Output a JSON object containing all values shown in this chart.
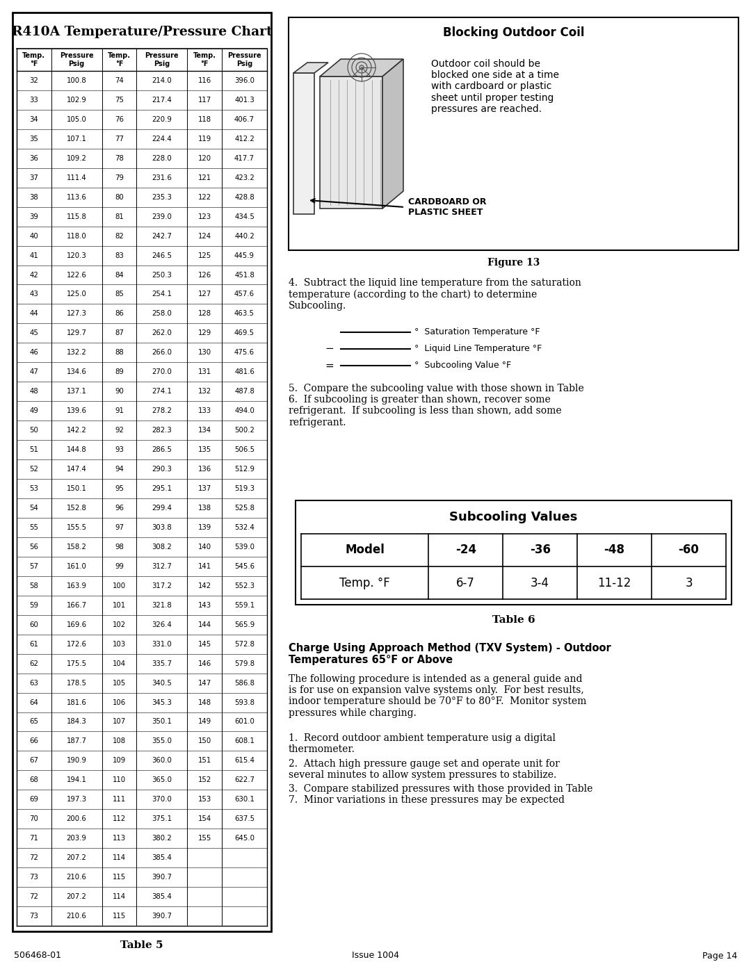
{
  "title_left": "R410A Temperature/Pressure Chart",
  "title_right": "Blocking Outdoor Coil",
  "figure13_caption": "Figure 13",
  "table5_caption": "Table 5",
  "table6_caption": "Table 6",
  "page_footer_left": "506468-01",
  "page_footer_center": "Issue 1004",
  "page_footer_right": "Page 14",
  "col1_temp": [
    32,
    33,
    34,
    35,
    36,
    37,
    38,
    39,
    40,
    41,
    42,
    43,
    44,
    45,
    46,
    47,
    48,
    49,
    50,
    51,
    52,
    53,
    54,
    55,
    56,
    57,
    58,
    59,
    60,
    61,
    62,
    63,
    64,
    65,
    66,
    67,
    68,
    69,
    70,
    71,
    72,
    73
  ],
  "col1_pres": [
    100.8,
    102.9,
    105.0,
    107.1,
    109.2,
    111.4,
    113.6,
    115.8,
    118.0,
    120.3,
    122.6,
    125.0,
    127.3,
    129.7,
    132.2,
    134.6,
    137.1,
    139.6,
    142.2,
    144.8,
    147.4,
    150.1,
    152.8,
    155.5,
    158.2,
    161.0,
    163.9,
    166.7,
    169.6,
    172.6,
    175.5,
    178.5,
    181.6,
    184.3,
    187.7,
    190.9,
    194.1,
    197.3,
    200.6,
    203.9,
    207.2,
    210.6
  ],
  "col2_temp": [
    74,
    75,
    76,
    77,
    78,
    79,
    80,
    81,
    82,
    83,
    84,
    85,
    86,
    87,
    88,
    89,
    90,
    91,
    92,
    93,
    94,
    95,
    96,
    97,
    98,
    99,
    100,
    101,
    102,
    103,
    104,
    105,
    106,
    107,
    108,
    109,
    110,
    111,
    112,
    113,
    114,
    115
  ],
  "col2_pres": [
    214.0,
    217.4,
    220.9,
    224.4,
    228.0,
    231.6,
    235.3,
    239.0,
    242.7,
    246.5,
    250.3,
    254.1,
    258.0,
    262.0,
    266.0,
    270.0,
    274.1,
    278.2,
    282.3,
    286.5,
    290.3,
    295.1,
    299.4,
    303.8,
    308.2,
    312.7,
    317.2,
    321.8,
    326.4,
    331.0,
    335.7,
    340.5,
    345.3,
    350.1,
    355.0,
    360.0,
    365.0,
    370.0,
    375.1,
    380.2,
    385.4,
    390.7
  ],
  "col3_temp": [
    116,
    117,
    118,
    119,
    120,
    121,
    122,
    123,
    124,
    125,
    126,
    127,
    128,
    129,
    130,
    131,
    132,
    133,
    134,
    135,
    136,
    137,
    138,
    139,
    140,
    141,
    142,
    143,
    144,
    145,
    146,
    147,
    148,
    149,
    150,
    151,
    152,
    153,
    154,
    155,
    null,
    null
  ],
  "col3_pres": [
    396.0,
    401.3,
    406.7,
    412.2,
    417.7,
    423.2,
    428.8,
    434.5,
    440.2,
    445.9,
    451.8,
    457.6,
    463.5,
    469.5,
    475.6,
    481.6,
    487.8,
    494.0,
    500.2,
    506.5,
    512.9,
    519.3,
    525.8,
    532.4,
    539.0,
    545.6,
    552.3,
    559.1,
    565.9,
    572.8,
    579.8,
    586.8,
    593.8,
    601.0,
    608.1,
    615.4,
    622.7,
    630.1,
    637.5,
    645.0,
    null,
    null
  ],
  "extra_rows_col1": [
    72,
    73
  ],
  "extra_rows_col1_pres": [
    207.2,
    210.6
  ],
  "extra_rows_col2": [
    114,
    115
  ],
  "extra_rows_col2_pres": [
    385.4,
    390.7
  ],
  "subcooling_table": {
    "header": [
      "Model",
      "-24",
      "-36",
      "-48",
      "-60"
    ],
    "row": [
      "Temp. °F",
      "6-7",
      "3-4",
      "11-12",
      "3"
    ]
  },
  "blocking_text": "Outdoor coil should be\nblocked one side at a time\nwith cardboard or plastic\nsheet until proper testing\npressures are reached.",
  "cardboard_label": "CARDBOARD OR\nPLASTIC SHEET",
  "subtract_text": "4.  Subtract the liquid line temperature from the saturation\ntemperature (according to the chart) to determine\nSubcooling.",
  "saturation_label": "Saturation Temperature °F",
  "liquidline_label": "Liquid Line Temperature °F",
  "subcooling_label": "Subcooling Value °F",
  "compare_text": "5.  Compare the subcooling value with those shown in Table\n6.  If subcooling is greater than shown, recover some\nrefrigerant.  If subcooling is less than shown, add some\nrefrigerant.",
  "charge_title": "Charge Using Approach Method (TXV System) - Outdoor\nTemperatures 65°F or Above",
  "charge_text": "The following procedure is intended as a general guide and\nis for use on expansion valve systems only.  For best results,\nindoor temperature should be 70°F to 80°F.  Monitor system\npressures while charging.",
  "record_text": "1.  Record outdoor ambient temperature usig a digital\nthermometer.",
  "attach_text": "2.  Attach high pressure gauge set and operate unit for\nseveral minutes to allow system pressures to stabilize.",
  "compare_text2": "3.  Compare stabilized pressures with those provided in Table\n7.  Minor variations in these pressures may be expected"
}
